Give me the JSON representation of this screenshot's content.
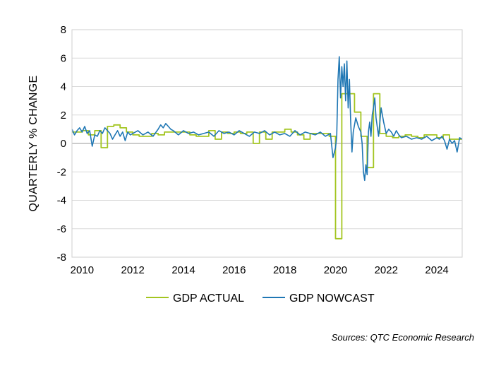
{
  "source": "Sources: QTC Economic Research",
  "colors": {
    "actual": "#a3c520",
    "nowcast": "#1f77b4",
    "grid": "#d9d9d9",
    "axis": "#000000"
  },
  "chart_data": {
    "type": "line",
    "title": "",
    "xlabel": "",
    "ylabel": "QUARTERLY % CHANGE",
    "xlim": [
      2009.6,
      2025.0
    ],
    "ylim": [
      -8,
      8
    ],
    "x_ticks": [
      2010,
      2012,
      2014,
      2016,
      2018,
      2020,
      2022,
      2024
    ],
    "y_ticks": [
      8,
      6,
      4,
      2,
      0,
      -2,
      -4,
      -6,
      -8
    ],
    "grid": true,
    "legend": "bottom",
    "series": [
      {
        "name": "GDP ACTUAL",
        "style": "step",
        "x": [
          2009.6,
          2010.0,
          2010.25,
          2010.5,
          2010.75,
          2011.0,
          2011.25,
          2011.5,
          2011.75,
          2012.0,
          2012.25,
          2012.5,
          2012.75,
          2013.0,
          2013.25,
          2013.5,
          2013.75,
          2014.0,
          2014.25,
          2014.5,
          2014.75,
          2015.0,
          2015.25,
          2015.5,
          2015.75,
          2016.0,
          2016.25,
          2016.5,
          2016.75,
          2017.0,
          2017.25,
          2017.5,
          2017.75,
          2018.0,
          2018.25,
          2018.5,
          2018.75,
          2019.0,
          2019.25,
          2019.5,
          2019.75,
          2020.0,
          2020.25,
          2020.5,
          2020.75,
          2021.0,
          2021.25,
          2021.5,
          2021.75,
          2022.0,
          2022.25,
          2022.5,
          2022.75,
          2023.0,
          2023.25,
          2023.5,
          2023.75,
          2024.0,
          2024.25,
          2024.5,
          2024.75,
          2025.0
        ],
        "values": [
          0.8,
          0.9,
          0.6,
          0.9,
          -0.3,
          1.2,
          1.3,
          1.1,
          0.8,
          0.6,
          0.5,
          0.5,
          0.7,
          0.6,
          0.8,
          0.8,
          0.8,
          0.8,
          0.6,
          0.5,
          0.5,
          0.9,
          0.3,
          0.8,
          0.7,
          0.8,
          0.7,
          0.8,
          0.0,
          0.8,
          0.3,
          0.8,
          0.8,
          1.0,
          0.8,
          0.6,
          0.3,
          0.7,
          0.7,
          0.7,
          0.5,
          -6.7,
          3.5,
          3.5,
          2.2,
          0.5,
          -1.7,
          3.5,
          0.7,
          0.5,
          0.4,
          0.5,
          0.6,
          0.5,
          0.4,
          0.6,
          0.6,
          0.4,
          0.6,
          0.3,
          0.3,
          0.3
        ]
      },
      {
        "name": "GDP NOWCAST",
        "style": "line",
        "x": [
          2009.6,
          2009.7,
          2009.8,
          2009.9,
          2010.0,
          2010.1,
          2010.2,
          2010.3,
          2010.4,
          2010.5,
          2010.6,
          2010.7,
          2010.8,
          2010.9,
          2011.0,
          2011.1,
          2011.2,
          2011.3,
          2011.4,
          2011.5,
          2011.6,
          2011.7,
          2011.8,
          2011.9,
          2012.0,
          2012.2,
          2012.4,
          2012.6,
          2012.8,
          2013.0,
          2013.1,
          2013.2,
          2013.3,
          2013.4,
          2013.5,
          2013.6,
          2013.8,
          2014.0,
          2014.2,
          2014.4,
          2014.6,
          2014.8,
          2015.0,
          2015.2,
          2015.4,
          2015.6,
          2015.8,
          2016.0,
          2016.2,
          2016.4,
          2016.6,
          2016.8,
          2017.0,
          2017.2,
          2017.4,
          2017.6,
          2017.8,
          2018.0,
          2018.2,
          2018.4,
          2018.6,
          2018.8,
          2019.0,
          2019.2,
          2019.4,
          2019.6,
          2019.8,
          2019.9,
          2020.0,
          2020.05,
          2020.1,
          2020.15,
          2020.2,
          2020.25,
          2020.3,
          2020.35,
          2020.4,
          2020.45,
          2020.5,
          2020.55,
          2020.6,
          2020.65,
          2020.7,
          2020.8,
          2020.9,
          2021.0,
          2021.05,
          2021.1,
          2021.15,
          2021.2,
          2021.25,
          2021.3,
          2021.35,
          2021.4,
          2021.45,
          2021.5,
          2021.55,
          2021.6,
          2021.7,
          2021.8,
          2021.9,
          2022.0,
          2022.1,
          2022.2,
          2022.3,
          2022.4,
          2022.5,
          2022.6,
          2022.8,
          2023.0,
          2023.2,
          2023.4,
          2023.6,
          2023.8,
          2024.0,
          2024.1,
          2024.2,
          2024.3,
          2024.4,
          2024.5,
          2024.6,
          2024.7,
          2024.8,
          2024.9,
          2025.0
        ],
        "values": [
          1.0,
          0.6,
          0.9,
          1.1,
          0.8,
          1.2,
          0.7,
          0.9,
          -0.2,
          0.6,
          0.5,
          0.9,
          0.7,
          1.1,
          0.9,
          0.7,
          0.3,
          0.6,
          0.9,
          0.5,
          0.8,
          0.2,
          0.8,
          0.6,
          0.7,
          0.9,
          0.6,
          0.8,
          0.5,
          1.0,
          1.3,
          1.1,
          1.4,
          1.2,
          1.0,
          0.9,
          0.6,
          0.9,
          0.7,
          0.8,
          0.6,
          0.7,
          0.8,
          0.5,
          0.9,
          0.7,
          0.8,
          0.6,
          0.9,
          0.7,
          0.5,
          0.8,
          0.7,
          0.9,
          0.6,
          0.8,
          0.6,
          0.7,
          0.5,
          0.9,
          0.6,
          0.8,
          0.7,
          0.6,
          0.8,
          0.5,
          0.7,
          -1.0,
          -0.3,
          0.5,
          4.5,
          6.1,
          3.2,
          5.4,
          4.0,
          5.6,
          3.0,
          5.8,
          2.5,
          4.5,
          1.5,
          -0.6,
          0.8,
          1.8,
          1.2,
          0.8,
          0.0,
          -2.0,
          -2.6,
          -1.5,
          -2.2,
          0.8,
          1.5,
          0.5,
          2.0,
          2.5,
          3.2,
          1.8,
          0.5,
          2.5,
          1.5,
          0.7,
          1.0,
          0.8,
          0.5,
          0.9,
          0.6,
          0.4,
          0.5,
          0.3,
          0.4,
          0.3,
          0.5,
          0.2,
          0.4,
          0.3,
          0.5,
          0.2,
          -0.4,
          0.3,
          0.0,
          0.2,
          -0.6,
          0.4,
          0.3
        ]
      }
    ]
  }
}
